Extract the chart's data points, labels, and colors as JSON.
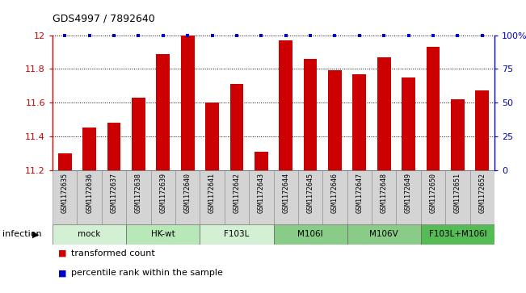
{
  "title": "GDS4997 / 7892640",
  "samples": [
    "GSM1172635",
    "GSM1172636",
    "GSM1172637",
    "GSM1172638",
    "GSM1172639",
    "GSM1172640",
    "GSM1172641",
    "GSM1172642",
    "GSM1172643",
    "GSM1172644",
    "GSM1172645",
    "GSM1172646",
    "GSM1172647",
    "GSM1172648",
    "GSM1172649",
    "GSM1172650",
    "GSM1172651",
    "GSM1172652"
  ],
  "bar_values": [
    11.3,
    11.45,
    11.48,
    11.63,
    11.89,
    12.0,
    11.6,
    11.71,
    11.31,
    11.97,
    11.86,
    11.79,
    11.77,
    11.87,
    11.75,
    11.93,
    11.62,
    11.67
  ],
  "groups": [
    {
      "label": "mock",
      "start": 0,
      "end": 2,
      "color": "#d4f0d4"
    },
    {
      "label": "HK-wt",
      "start": 3,
      "end": 5,
      "color": "#b8e8b8"
    },
    {
      "label": "F103L",
      "start": 6,
      "end": 8,
      "color": "#d4f0d4"
    },
    {
      "label": "M106I",
      "start": 9,
      "end": 11,
      "color": "#88cc88"
    },
    {
      "label": "M106V",
      "start": 12,
      "end": 14,
      "color": "#88cc88"
    },
    {
      "label": "F103L+M106I",
      "start": 15,
      "end": 17,
      "color": "#55bb55"
    }
  ],
  "ylim": [
    11.2,
    12.0
  ],
  "yticks": [
    11.2,
    11.4,
    11.6,
    11.8,
    12.0
  ],
  "ytick_labels": [
    "11.2",
    "11.4",
    "11.6",
    "11.8",
    "12"
  ],
  "right_ytick_labels": [
    "0",
    "25",
    "50",
    "75",
    "100%"
  ],
  "bar_color": "#cc0000",
  "dot_color": "#0000cc",
  "legend_bar_label": "transformed count",
  "legend_dot_label": "percentile rank within the sample",
  "bar_width": 0.55
}
